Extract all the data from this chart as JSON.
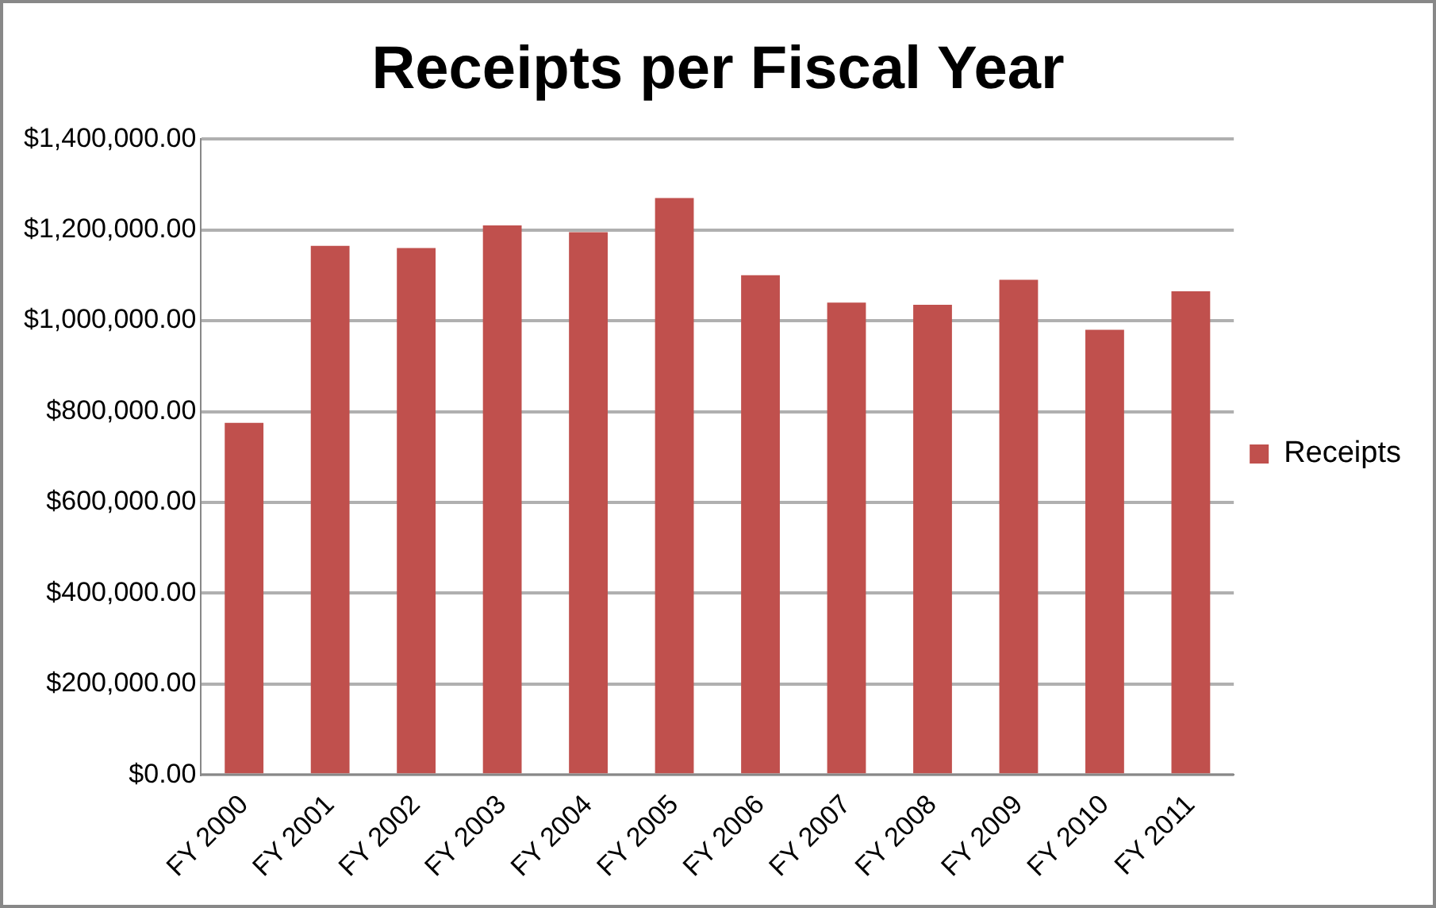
{
  "chart_data": {
    "type": "bar",
    "title": "Receipts per Fiscal Year",
    "categories": [
      "FY 2000",
      "FY 2001",
      "FY 2002",
      "FY 2003",
      "FY 2004",
      "FY 2005",
      "FY 2006",
      "FY 2007",
      "FY 2008",
      "FY 2009",
      "FY 2010",
      "FY 2011"
    ],
    "series": [
      {
        "name": "Receipts",
        "color": "#c0504d",
        "values": [
          775000,
          1165000,
          1160000,
          1210000,
          1195000,
          1270000,
          1100000,
          1040000,
          1035000,
          1090000,
          980000,
          1065000
        ]
      }
    ],
    "ylim": [
      0,
      1400000
    ],
    "yticks": [
      {
        "value": 0,
        "label": "$0.00"
      },
      {
        "value": 200000,
        "label": "$200,000.00"
      },
      {
        "value": 400000,
        "label": "$400,000.00"
      },
      {
        "value": 600000,
        "label": "$600,000.00"
      },
      {
        "value": 800000,
        "label": "$800,000.00"
      },
      {
        "value": 1000000,
        "label": "$1,000,000.00"
      },
      {
        "value": 1200000,
        "label": "$1,200,000.00"
      },
      {
        "value": 1400000,
        "label": "$1,400,000.00"
      }
    ],
    "grid": "y",
    "legend": "right"
  }
}
